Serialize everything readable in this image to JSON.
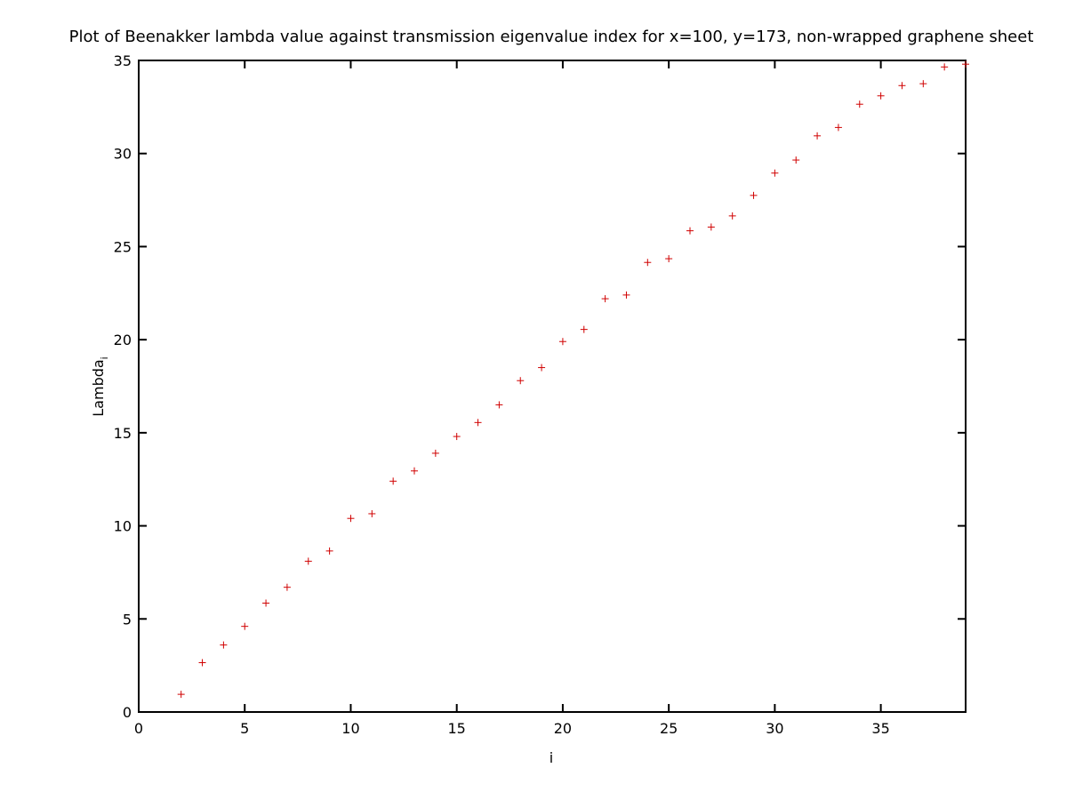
{
  "chart_data": {
    "type": "scatter",
    "title": "Plot of Beenakker lambda value against transmission eigenvalue index for x=100, y=173, non-wrapped graphene sheet",
    "xlabel": "i",
    "ylabel": "Lambda",
    "ylabel_subscript": "i",
    "xlim": [
      0,
      39
    ],
    "ylim": [
      0,
      35
    ],
    "xticks": [
      0,
      5,
      10,
      15,
      20,
      25,
      30,
      35
    ],
    "yticks": [
      0,
      5,
      10,
      15,
      20,
      25,
      30,
      35
    ],
    "grid": false,
    "marker": "+",
    "point_color": "#d00000",
    "x": [
      2,
      3,
      4,
      5,
      6,
      7,
      8,
      9,
      10,
      11,
      12,
      13,
      14,
      15,
      16,
      17,
      18,
      19,
      20,
      21,
      22,
      23,
      24,
      25,
      26,
      27,
      28,
      29,
      30,
      31,
      32,
      33,
      34,
      35,
      36,
      37,
      38,
      39
    ],
    "y": [
      0.95,
      2.65,
      3.6,
      4.6,
      5.85,
      6.7,
      8.1,
      8.65,
      10.4,
      10.65,
      12.4,
      12.95,
      13.9,
      14.8,
      15.55,
      16.5,
      17.8,
      18.5,
      19.9,
      20.55,
      22.2,
      22.4,
      24.15,
      24.35,
      25.85,
      26.05,
      26.65,
      27.75,
      28.95,
      29.65,
      30.95,
      31.4,
      32.65,
      33.1,
      33.65,
      33.75,
      34.65,
      34.8
    ]
  }
}
